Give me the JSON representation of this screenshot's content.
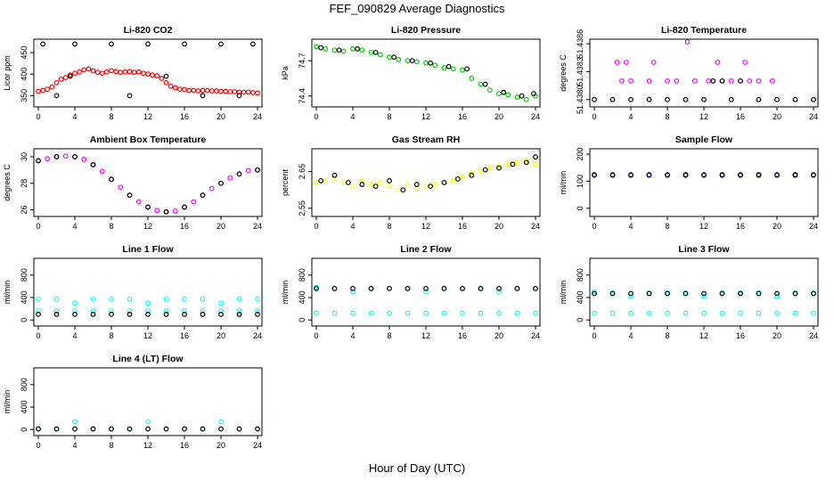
{
  "figure": {
    "title": "FEF_090829  Average Diagnostics",
    "xlabel": "Hour of Day (UTC)"
  },
  "chart_data": [
    {
      "type": "scatter",
      "title": "Li-820 CO2",
      "ylabel": "Licor ppm",
      "x_ticks": [
        "0",
        "4",
        "8",
        "12",
        "16",
        "20",
        "24"
      ],
      "y_ticks": [
        "350",
        "400",
        "450"
      ],
      "xlim": [
        0,
        24
      ],
      "ylim": [
        330,
        475
      ],
      "grid": false,
      "series": [
        {
          "color": "#ff0000",
          "x": [
            0,
            0.5,
            1,
            1.5,
            2,
            2.5,
            3,
            3.5,
            4,
            4.5,
            5,
            5.5,
            6,
            6.5,
            7,
            7.5,
            8,
            8.5,
            9,
            9.5,
            10,
            10.5,
            11,
            11.5,
            12,
            12.5,
            13,
            13.5,
            14,
            14.5,
            15,
            15.5,
            16,
            16.5,
            17,
            17.5,
            18,
            18.5,
            19,
            19.5,
            20,
            20.5,
            21,
            21.5,
            22,
            22.5,
            23,
            23.5,
            24
          ],
          "y": [
            360,
            362,
            365,
            370,
            380,
            388,
            392,
            398,
            402,
            405,
            410,
            412,
            408,
            404,
            402,
            405,
            408,
            406,
            404,
            405,
            406,
            404,
            405,
            402,
            400,
            398,
            396,
            390,
            380,
            372,
            368,
            365,
            364,
            362,
            362,
            361,
            362,
            362,
            361,
            361,
            360,
            360,
            359,
            359,
            358,
            358,
            358,
            357,
            356
          ]
        },
        {
          "color": "#000000",
          "x": [
            0.5,
            4,
            8,
            12,
            16,
            20,
            23.5,
            2,
            10,
            18,
            22,
            3.5,
            14
          ],
          "y": [
            470,
            470,
            470,
            470,
            470,
            470,
            470,
            350,
            350,
            350,
            350,
            395,
            395
          ]
        }
      ]
    },
    {
      "type": "scatter",
      "title": "Li-820 Pressure",
      "ylabel": "kPa",
      "x_ticks": [
        "0",
        "4",
        "8",
        "12",
        "16",
        "20",
        "24"
      ],
      "y_ticks": [
        "74.4",
        "74.7"
      ],
      "xlim": [
        0,
        24
      ],
      "ylim": [
        74.33,
        74.86
      ],
      "grid": false,
      "series": [
        {
          "color": "#00cc00",
          "x": [
            0,
            1,
            2,
            3,
            4,
            5,
            6,
            7,
            8,
            9,
            10,
            11,
            12,
            13,
            14,
            15,
            16,
            17,
            18,
            19,
            20,
            21,
            22,
            23,
            24
          ],
          "y": [
            74.82,
            74.8,
            74.79,
            74.78,
            74.8,
            74.79,
            74.77,
            74.75,
            74.73,
            74.71,
            74.7,
            74.69,
            74.68,
            74.66,
            74.64,
            74.63,
            74.62,
            74.55,
            74.5,
            74.45,
            74.42,
            74.41,
            74.39,
            74.37,
            74.4
          ]
        },
        {
          "color": "#000000",
          "x": [
            0.5,
            2.5,
            4.5,
            6.5,
            8.5,
            10.5,
            12.5,
            14.5,
            16.5,
            18.5,
            20.5,
            22.5,
            23.8
          ],
          "y": [
            74.81,
            74.79,
            74.8,
            74.77,
            74.73,
            74.7,
            74.68,
            74.65,
            74.63,
            74.5,
            74.43,
            74.4,
            74.42
          ]
        }
      ]
    },
    {
      "type": "scatter",
      "title": "Li-820 Temperature",
      "ylabel": "degrees C",
      "x_ticks": [
        "0",
        "4",
        "8",
        "12",
        "16",
        "20",
        "24"
      ],
      "y_ticks": [
        "51.4380",
        "51.4383",
        "51.4386"
      ],
      "xlim": [
        0,
        24
      ],
      "ylim": [
        51.43795,
        51.43862
      ],
      "grid": false,
      "series": [
        {
          "color": "#ff00ff",
          "x": [
            3,
            4,
            6,
            8,
            9,
            10.2,
            11,
            12.5,
            13,
            14,
            15,
            16,
            17,
            18,
            19.5,
            2.5,
            3.5,
            6.5,
            13.5,
            16.5
          ],
          "y": [
            51.4382,
            51.4382,
            51.4382,
            51.4382,
            51.4382,
            51.43862,
            51.4382,
            51.4382,
            51.4382,
            51.4382,
            51.4382,
            51.4382,
            51.4382,
            51.4382,
            51.4382,
            51.4384,
            51.4384,
            51.4384,
            51.4384,
            51.4384
          ]
        },
        {
          "color": "#000000",
          "x": [
            0,
            2,
            4,
            6,
            8,
            10,
            12,
            13,
            14,
            15,
            16,
            18,
            20,
            22,
            24
          ],
          "y": [
            51.438,
            51.438,
            51.438,
            51.438,
            51.438,
            51.438,
            51.438,
            51.4382,
            51.4382,
            51.438,
            51.4382,
            51.438,
            51.438,
            51.438,
            51.438
          ]
        }
      ]
    },
    {
      "type": "scatter",
      "title": "Ambient Box Temperature",
      "ylabel": "degrees C",
      "x_ticks": [
        "0",
        "4",
        "8",
        "12",
        "16",
        "20",
        "24"
      ],
      "y_ticks": [
        "26",
        "28",
        "30"
      ],
      "xlim": [
        0,
        24
      ],
      "ylim": [
        25.7,
        30.4
      ],
      "grid": false,
      "series": [
        {
          "color": "#ff00ff",
          "x": [
            0,
            1,
            2,
            3,
            4,
            5,
            6,
            7,
            8,
            9,
            10,
            11,
            12,
            13,
            14,
            15,
            16,
            17,
            18,
            19,
            20,
            21,
            22,
            23,
            24
          ],
          "y": [
            29.7,
            29.85,
            30.0,
            30.05,
            30.0,
            29.8,
            29.4,
            28.9,
            28.3,
            27.7,
            27.1,
            26.6,
            26.2,
            25.95,
            25.85,
            25.9,
            26.2,
            26.6,
            27.1,
            27.6,
            28.0,
            28.4,
            28.7,
            28.95,
            29.0
          ]
        },
        {
          "color": "#000000",
          "x": [
            0,
            2,
            4,
            6,
            8,
            10,
            12,
            14,
            16,
            18,
            20,
            22,
            24
          ],
          "y": [
            29.7,
            30.0,
            30.0,
            29.4,
            28.3,
            27.1,
            26.2,
            25.85,
            26.2,
            27.1,
            28.0,
            28.7,
            29.0
          ]
        }
      ]
    },
    {
      "type": "scatter",
      "title": "Gas Stream RH",
      "ylabel": "percent",
      "x_ticks": [
        "0",
        "4",
        "8",
        "12",
        "16",
        "20",
        "24"
      ],
      "y_ticks": [
        "2.55",
        "2.65"
      ],
      "xlim": [
        0,
        24
      ],
      "ylim": [
        2.535,
        2.705
      ],
      "grid": false,
      "series": [
        {
          "color": "#ffff00",
          "x": [
            0,
            1,
            2,
            3,
            4,
            5,
            6,
            7,
            8,
            9,
            10,
            11,
            12,
            13,
            14,
            15,
            16,
            17,
            18,
            19,
            20,
            21,
            22,
            23,
            24
          ],
          "y": [
            2.62,
            2.625,
            2.63,
            2.62,
            2.61,
            2.625,
            2.615,
            2.62,
            2.61,
            2.6,
            2.615,
            2.605,
            2.61,
            2.615,
            2.62,
            2.625,
            2.635,
            2.645,
            2.65,
            2.66,
            2.665,
            2.67,
            2.675,
            2.68,
            2.67
          ]
        },
        {
          "color": "#000000",
          "x": [
            0.5,
            2,
            3.5,
            5,
            6.5,
            8,
            9.5,
            11,
            12.5,
            14,
            15.5,
            17,
            18.5,
            20,
            21.5,
            23,
            24
          ],
          "y": [
            2.625,
            2.64,
            2.62,
            2.615,
            2.61,
            2.625,
            2.6,
            2.615,
            2.61,
            2.62,
            2.63,
            2.64,
            2.655,
            2.66,
            2.67,
            2.675,
            2.69
          ]
        }
      ]
    },
    {
      "type": "scatter",
      "title": "Sample Flow",
      "ylabel": "ml/min",
      "x_ticks": [
        "0",
        "4",
        "8",
        "12",
        "16",
        "20",
        "24"
      ],
      "y_ticks": [
        "0",
        "100",
        "200"
      ],
      "xlim": [
        0,
        24
      ],
      "ylim": [
        -20,
        210
      ],
      "grid": false,
      "series": [
        {
          "color": "#0000ff",
          "x": [
            0,
            2,
            4,
            6,
            8,
            10,
            12,
            14,
            16,
            18,
            20,
            22,
            24
          ],
          "y": [
            122,
            122,
            122,
            122,
            122,
            122,
            122,
            122,
            122,
            122,
            122,
            122,
            122
          ]
        },
        {
          "color": "#000000",
          "x": [
            0,
            2,
            4,
            6,
            8,
            10,
            12,
            14,
            16,
            18,
            20,
            22,
            24
          ],
          "y": [
            124,
            124,
            124,
            124,
            124,
            124,
            124,
            124,
            124,
            124,
            124,
            124,
            124
          ]
        }
      ]
    },
    {
      "type": "scatter",
      "title": "Line 1 Flow",
      "ylabel": "ml/min",
      "x_ticks": [
        "0",
        "4",
        "8",
        "12",
        "16",
        "20",
        "24"
      ],
      "y_ticks": [
        "0",
        "400",
        "800"
      ],
      "xlim": [
        0,
        24
      ],
      "ylim": [
        -60,
        1050
      ],
      "grid": false,
      "series": [
        {
          "color": "#00ffff",
          "x": [
            0,
            2,
            4,
            6,
            8,
            10,
            12,
            14,
            16,
            18,
            20,
            22,
            24
          ],
          "y": [
            370,
            370,
            300,
            370,
            370,
            370,
            300,
            370,
            370,
            370,
            300,
            370,
            370
          ]
        },
        {
          "color": "#00ffff",
          "x": [
            0,
            2,
            4,
            6,
            8,
            10,
            12,
            14,
            16,
            18,
            20,
            22,
            24
          ],
          "y": [
            160,
            160,
            160,
            160,
            160,
            160,
            160,
            160,
            160,
            160,
            160,
            160,
            160
          ]
        },
        {
          "color": "#000000",
          "x": [
            0,
            2,
            4,
            6,
            8,
            10,
            12,
            14,
            16,
            18,
            20,
            22,
            24
          ],
          "y": [
            100,
            100,
            100,
            100,
            100,
            100,
            100,
            100,
            100,
            100,
            100,
            100,
            100
          ]
        }
      ]
    },
    {
      "type": "scatter",
      "title": "Line 2 Flow",
      "ylabel": "ml/min",
      "x_ticks": [
        "0",
        "4",
        "8",
        "12",
        "16",
        "20",
        "24"
      ],
      "y_ticks": [
        "0",
        "400",
        "800"
      ],
      "xlim": [
        0,
        24
      ],
      "ylim": [
        -60,
        1050
      ],
      "grid": false,
      "series": [
        {
          "color": "#00ffff",
          "x": [
            0,
            2,
            4,
            6,
            8,
            10,
            12,
            14,
            16,
            18,
            20,
            22,
            24
          ],
          "y": [
            580,
            560,
            500,
            560,
            560,
            560,
            500,
            560,
            560,
            560,
            500,
            560,
            560
          ]
        },
        {
          "color": "#00ffff",
          "x": [
            0,
            2,
            4,
            6,
            8,
            10,
            12,
            14,
            16,
            18,
            20,
            22,
            24
          ],
          "y": [
            120,
            120,
            120,
            120,
            120,
            120,
            120,
            120,
            120,
            120,
            120,
            120,
            120
          ]
        },
        {
          "color": "#000000",
          "x": [
            0,
            2,
            4,
            6,
            8,
            10,
            12,
            14,
            16,
            18,
            20,
            22,
            24
          ],
          "y": [
            560,
            560,
            560,
            560,
            560,
            560,
            560,
            560,
            560,
            560,
            560,
            560,
            560
          ]
        }
      ]
    },
    {
      "type": "scatter",
      "title": "Line 3 Flow",
      "ylabel": "ml/min",
      "x_ticks": [
        "0",
        "4",
        "8",
        "12",
        "16",
        "20",
        "24"
      ],
      "y_ticks": [
        "0",
        "400",
        "800"
      ],
      "xlim": [
        0,
        24
      ],
      "ylim": [
        -60,
        1050
      ],
      "grid": false,
      "series": [
        {
          "color": "#00ffff",
          "x": [
            0,
            2,
            4,
            6,
            8,
            10,
            12,
            14,
            16,
            18,
            20,
            22,
            24
          ],
          "y": [
            500,
            480,
            420,
            480,
            480,
            480,
            420,
            480,
            480,
            480,
            420,
            480,
            480
          ]
        },
        {
          "color": "#00ffff",
          "x": [
            0,
            2,
            4,
            6,
            8,
            10,
            12,
            14,
            16,
            18,
            20,
            22,
            24
          ],
          "y": [
            120,
            120,
            120,
            120,
            120,
            120,
            120,
            120,
            120,
            120,
            120,
            120,
            120
          ]
        },
        {
          "color": "#000000",
          "x": [
            0,
            2,
            4,
            6,
            8,
            10,
            12,
            14,
            16,
            18,
            20,
            22,
            24
          ],
          "y": [
            470,
            470,
            470,
            470,
            470,
            470,
            470,
            470,
            470,
            470,
            470,
            470,
            470
          ]
        }
      ]
    },
    {
      "type": "scatter",
      "title": "Line 4 (LT) Flow",
      "ylabel": "ml/min",
      "x_ticks": [
        "0",
        "4",
        "8",
        "12",
        "16",
        "20",
        "24"
      ],
      "y_ticks": [
        "0",
        "400",
        "800"
      ],
      "xlim": [
        0,
        24
      ],
      "ylim": [
        -60,
        1050
      ],
      "grid": false,
      "series": [
        {
          "color": "#00ffff",
          "x": [
            0,
            2,
            4,
            6,
            8,
            10,
            12,
            14,
            16,
            18,
            20,
            22,
            24
          ],
          "y": [
            10,
            10,
            140,
            10,
            10,
            10,
            140,
            10,
            10,
            10,
            140,
            10,
            10
          ]
        },
        {
          "color": "#000000",
          "x": [
            0,
            2,
            4,
            6,
            8,
            10,
            12,
            14,
            16,
            18,
            20,
            22,
            24
          ],
          "y": [
            10,
            10,
            10,
            10,
            10,
            10,
            10,
            10,
            10,
            10,
            10,
            10,
            10
          ]
        }
      ]
    }
  ]
}
